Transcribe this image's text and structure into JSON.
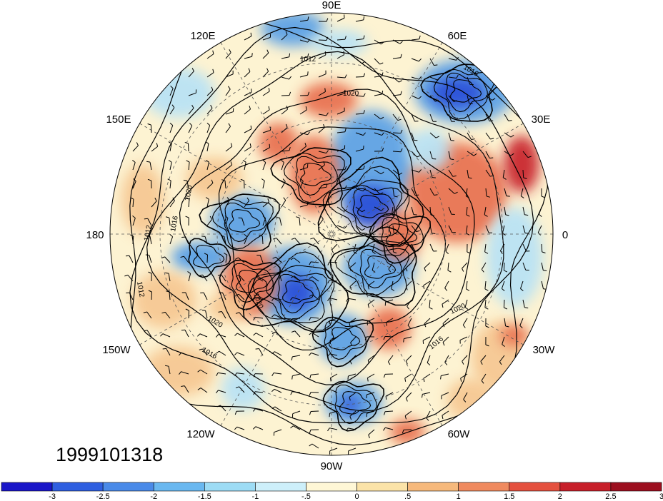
{
  "map": {
    "projection": "north-polar-stereographic",
    "longitude_labels": [
      "90E",
      "60E",
      "30E",
      "0",
      "30W",
      "60W",
      "90W",
      "120W",
      "150W",
      "180",
      "150E",
      "120E"
    ],
    "isobar_labels": [
      "1012",
      "1020",
      "1016",
      "1020",
      "1012",
      "1016",
      "1012",
      "1020",
      "1020",
      "1016",
      "1020",
      "1016"
    ],
    "field_colors": {
      "strong_negative": "#2a4fd8",
      "negative": "#5aa0e6",
      "weak_negative": "#b8e2f5",
      "neutral": "#fdf6dc",
      "weak_positive": "#f6c792",
      "positive": "#e8704f",
      "strong_positive": "#c8202a"
    }
  },
  "date": "1999101318",
  "colorbar": {
    "tick_labels": [
      "-3",
      "-2.5",
      "-2",
      "-1.5",
      "-1",
      "-.5",
      "0",
      ".5",
      "1",
      "1.5",
      "2",
      "2.5",
      "3"
    ],
    "colors": [
      "#1a16c8",
      "#2f5fe0",
      "#4a8ae8",
      "#6ab8f0",
      "#9ddcf5",
      "#cdeffa",
      "#fff7d6",
      "#fbe3a8",
      "#f6b97c",
      "#ef8a5f",
      "#e4513f",
      "#c71f2a",
      "#9c0f1f"
    ]
  }
}
